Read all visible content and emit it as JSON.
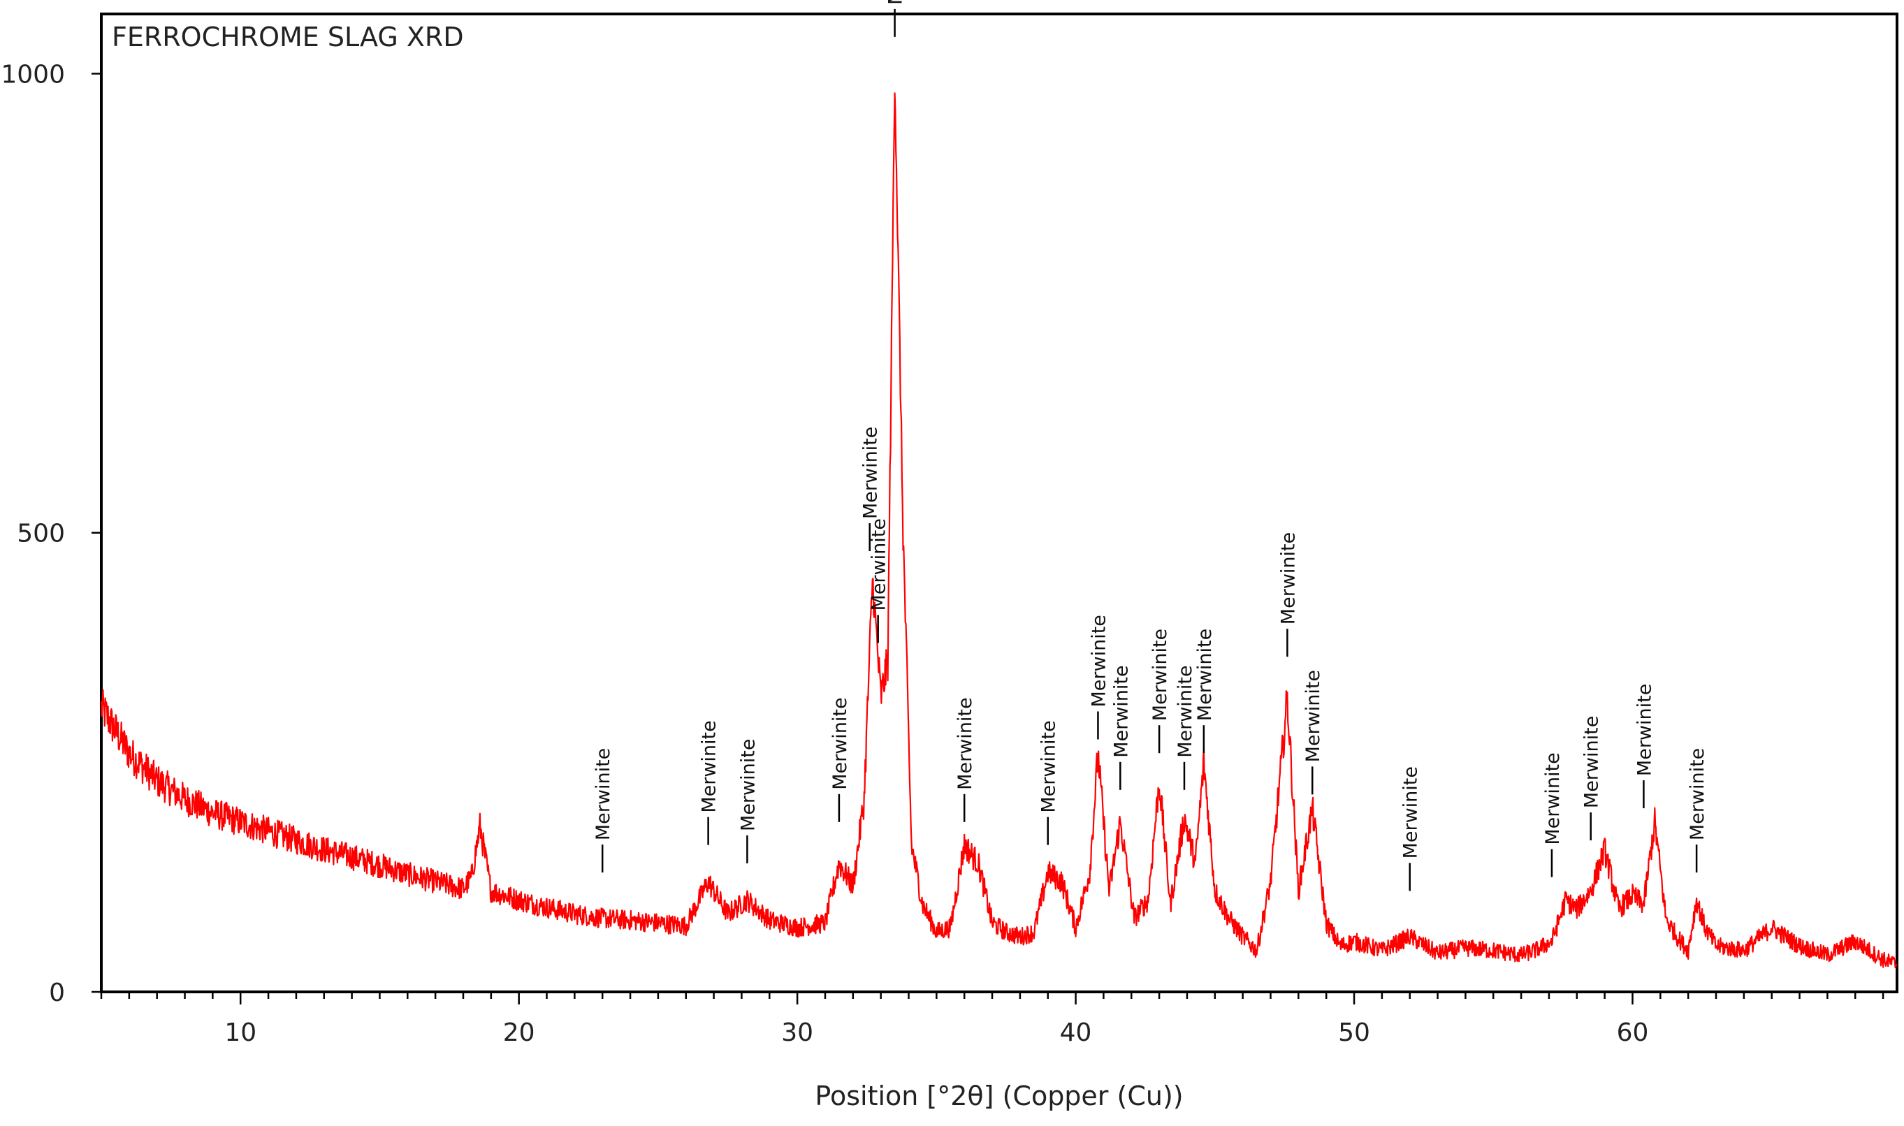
{
  "chart_data": {
    "type": "line",
    "title": "FERROCHROME SLAG XRD",
    "xlabel": "Position [°2θ] (Copper (Cu))",
    "ylabel": "",
    "xlim": [
      5,
      69.5
    ],
    "ylim": [
      0,
      1065
    ],
    "xticks": [
      10,
      20,
      30,
      40,
      50,
      60
    ],
    "yticks": [
      0,
      500,
      1000
    ],
    "x_minor_tick_step": 1,
    "grid": false,
    "legend": "none",
    "colors": {
      "series": "#ff0000",
      "axes": "#000000",
      "text": "#222222"
    },
    "series": [
      {
        "x": [
          5,
          6,
          7,
          8,
          9,
          10,
          11,
          12,
          13,
          14,
          15,
          16,
          17,
          18,
          18.3,
          18.6,
          19,
          19.5,
          20,
          21,
          22,
          23,
          24,
          25,
          26,
          26.8,
          27.5,
          28.2,
          29,
          30,
          31,
          31.5,
          32,
          32.4,
          32.7,
          33.0,
          33.25,
          33.5,
          33.8,
          34.1,
          34.5,
          35,
          35.5,
          36.0,
          36.5,
          37,
          37.5,
          38,
          38.5,
          39.0,
          39.5,
          40,
          40.5,
          40.8,
          41.2,
          41.6,
          42.1,
          42.6,
          43.0,
          43.4,
          43.9,
          44.3,
          44.6,
          45.0,
          45.5,
          46,
          46.5,
          47.0,
          47.6,
          48.0,
          48.5,
          49.0,
          49.5,
          50,
          51,
          52.0,
          53,
          54,
          55,
          56,
          56.5,
          57.1,
          57.6,
          58.0,
          58.5,
          59.0,
          59.5,
          60.0,
          60.4,
          60.8,
          61.2,
          61.6,
          62.0,
          62.3,
          62.6,
          63.0,
          64,
          65,
          66,
          67,
          68,
          69,
          69.5
        ],
        "y": [
          310,
          260,
          230,
          210,
          195,
          185,
          175,
          165,
          155,
          147,
          138,
          128,
          120,
          112,
          125,
          180,
          110,
          105,
          100,
          92,
          85,
          80,
          78,
          75,
          72,
          120,
          85,
          100,
          78,
          70,
          75,
          140,
          115,
          210,
          450,
          320,
          360,
          1000,
          500,
          160,
          95,
          65,
          70,
          160,
          140,
          75,
          65,
          60,
          65,
          130,
          120,
          70,
          130,
          260,
          110,
          185,
          80,
          100,
          230,
          95,
          190,
          140,
          250,
          110,
          80,
          60,
          45,
          120,
          320,
          110,
          200,
          75,
          50,
          55,
          45,
          60,
          42,
          48,
          45,
          40,
          45,
          55,
          100,
          90,
          110,
          155,
          90,
          105,
          95,
          185,
          80,
          60,
          45,
          100,
          70,
          50,
          45,
          70,
          50,
          40,
          55,
          35,
          30
        ]
      }
    ],
    "annotations": [
      {
        "text": "Merwinite",
        "x": 23.0,
        "y": 130
      },
      {
        "text": "Merwinite",
        "x": 26.8,
        "y": 160
      },
      {
        "text": "Merwinite",
        "x": 28.2,
        "y": 140
      },
      {
        "text": "Merwinite",
        "x": 31.5,
        "y": 185
      },
      {
        "text": "Merwinite",
        "x": 32.6,
        "y": 480
      },
      {
        "text": "Merwinite",
        "x": 32.9,
        "y": 380
      },
      {
        "text": "Merwinite",
        "x": 33.5,
        "y": 1040
      },
      {
        "text": "Merwinite",
        "x": 36.0,
        "y": 185
      },
      {
        "text": "Merwinite",
        "x": 39.0,
        "y": 160
      },
      {
        "text": "Merwinite",
        "x": 40.8,
        "y": 275
      },
      {
        "text": "Merwinite",
        "x": 41.6,
        "y": 220
      },
      {
        "text": "Merwinite",
        "x": 43.0,
        "y": 260
      },
      {
        "text": "Merwinite",
        "x": 43.9,
        "y": 220
      },
      {
        "text": "Merwinite",
        "x": 44.6,
        "y": 260
      },
      {
        "text": "Merwinite",
        "x": 47.6,
        "y": 365
      },
      {
        "text": "Merwinite",
        "x": 48.5,
        "y": 215
      },
      {
        "text": "Merwinite",
        "x": 52.0,
        "y": 110
      },
      {
        "text": "Merwinite",
        "x": 57.1,
        "y": 125
      },
      {
        "text": "Merwinite",
        "x": 58.5,
        "y": 165
      },
      {
        "text": "Merwinite",
        "x": 60.4,
        "y": 200
      },
      {
        "text": "Merwinite",
        "x": 62.3,
        "y": 130
      }
    ]
  }
}
